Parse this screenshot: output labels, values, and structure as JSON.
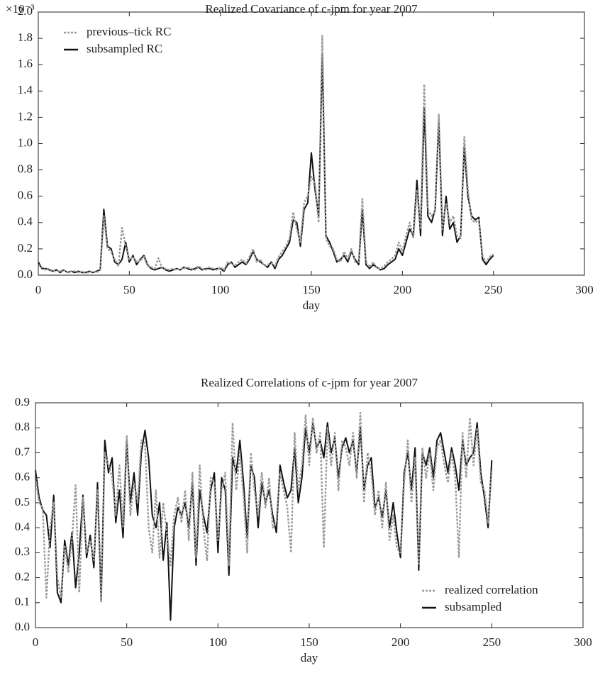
{
  "chart_data": [
    {
      "type": "line",
      "title": "Realized Covariance of c-jpm for year 2007",
      "xlabel": "day",
      "y_offset_label": "×10⁻³",
      "xlim": [
        0,
        300
      ],
      "xticks": [
        0,
        50,
        100,
        150,
        200,
        250,
        300
      ],
      "ylim": [
        0,
        2
      ],
      "yticks": [
        {
          "value": 0,
          "label": "0.0"
        },
        0.2,
        0.4,
        0.6,
        0.8,
        {
          "value": 1,
          "label": "1.0"
        },
        1.2,
        1.4,
        1.6,
        1.8,
        {
          "value": 2,
          "label": "2.0"
        }
      ],
      "legend": "upper left",
      "x": [
        0,
        2,
        4,
        6,
        8,
        10,
        12,
        14,
        16,
        18,
        20,
        22,
        24,
        26,
        28,
        30,
        32,
        34,
        36,
        38,
        40,
        42,
        44,
        46,
        48,
        50,
        52,
        54,
        56,
        58,
        60,
        62,
        64,
        66,
        68,
        70,
        72,
        74,
        76,
        78,
        80,
        82,
        84,
        86,
        88,
        90,
        92,
        94,
        96,
        98,
        100,
        102,
        104,
        106,
        108,
        110,
        112,
        114,
        116,
        118,
        120,
        122,
        124,
        126,
        128,
        130,
        132,
        134,
        136,
        138,
        140,
        142,
        144,
        146,
        148,
        150,
        152,
        154,
        156,
        158,
        160,
        162,
        164,
        166,
        168,
        170,
        172,
        174,
        176,
        178,
        180,
        182,
        184,
        186,
        188,
        190,
        192,
        194,
        196,
        198,
        200,
        202,
        204,
        206,
        208,
        210,
        212,
        214,
        216,
        218,
        220,
        222,
        224,
        226,
        228,
        230,
        232,
        234,
        236,
        238,
        240,
        242,
        244,
        246,
        248,
        250
      ],
      "series": [
        {
          "name": "previous–tick RC",
          "color": "#999999",
          "linestyle": "dashed",
          "values": [
            0.08,
            0.06,
            0.04,
            0.05,
            0.03,
            0.03,
            0.03,
            0.04,
            0.02,
            0.03,
            0.03,
            0.02,
            0.03,
            0.02,
            0.02,
            0.03,
            0.02,
            0.04,
            0.45,
            0.2,
            0.18,
            0.12,
            0.07,
            0.36,
            0.22,
            0.12,
            0.14,
            0.1,
            0.11,
            0.14,
            0.07,
            0.06,
            0.05,
            0.13,
            0.05,
            0.05,
            0.04,
            0.05,
            0.04,
            0.05,
            0.05,
            0.06,
            0.05,
            0.04,
            0.07,
            0.05,
            0.04,
            0.06,
            0.05,
            0.04,
            0.06,
            0.04,
            0.1,
            0.09,
            0.07,
            0.1,
            0.12,
            0.09,
            0.14,
            0.2,
            0.1,
            0.12,
            0.07,
            0.08,
            0.09,
            0.07,
            0.14,
            0.18,
            0.22,
            0.28,
            0.48,
            0.35,
            0.25,
            0.55,
            0.6,
            0.75,
            0.7,
            0.4,
            1.82,
            0.28,
            0.22,
            0.2,
            0.12,
            0.1,
            0.18,
            0.12,
            0.2,
            0.1,
            0.1,
            0.58,
            0.1,
            0.06,
            0.1,
            0.05,
            0.05,
            0.07,
            0.1,
            0.12,
            0.15,
            0.25,
            0.18,
            0.3,
            0.4,
            0.28,
            0.65,
            0.35,
            1.45,
            0.5,
            0.45,
            0.48,
            1.22,
            0.35,
            0.55,
            0.4,
            0.45,
            0.3,
            0.28,
            1.05,
            0.65,
            0.42,
            0.4,
            0.42,
            0.15,
            0.1,
            0.14,
            0.16
          ]
        },
        {
          "name": "subsampled RC",
          "color": "#111111",
          "linestyle": "solid",
          "values": [
            0.1,
            0.05,
            0.05,
            0.04,
            0.03,
            0.04,
            0.02,
            0.04,
            0.02,
            0.03,
            0.02,
            0.03,
            0.02,
            0.02,
            0.03,
            0.02,
            0.03,
            0.04,
            0.5,
            0.22,
            0.2,
            0.1,
            0.08,
            0.12,
            0.25,
            0.1,
            0.15,
            0.08,
            0.12,
            0.15,
            0.08,
            0.05,
            0.04,
            0.05,
            0.06,
            0.04,
            0.03,
            0.04,
            0.05,
            0.04,
            0.06,
            0.05,
            0.04,
            0.05,
            0.06,
            0.04,
            0.05,
            0.05,
            0.04,
            0.05,
            0.05,
            0.03,
            0.08,
            0.1,
            0.06,
            0.08,
            0.1,
            0.08,
            0.12,
            0.18,
            0.12,
            0.1,
            0.08,
            0.06,
            0.1,
            0.05,
            0.12,
            0.15,
            0.2,
            0.25,
            0.42,
            0.4,
            0.22,
            0.5,
            0.55,
            0.93,
            0.65,
            0.45,
            1.68,
            0.3,
            0.25,
            0.18,
            0.1,
            0.12,
            0.15,
            0.1,
            0.18,
            0.12,
            0.08,
            0.5,
            0.08,
            0.05,
            0.08,
            0.06,
            0.04,
            0.05,
            0.08,
            0.1,
            0.12,
            0.2,
            0.15,
            0.25,
            0.35,
            0.3,
            0.72,
            0.3,
            1.27,
            0.45,
            0.4,
            0.5,
            1.18,
            0.3,
            0.6,
            0.35,
            0.4,
            0.25,
            0.3,
            0.98,
            0.6,
            0.45,
            0.42,
            0.44,
            0.12,
            0.08,
            0.12,
            0.15
          ]
        }
      ]
    },
    {
      "type": "line",
      "title": "Realized Correlations of c-jpm for year 2007",
      "xlabel": "day",
      "xlim": [
        0,
        300
      ],
      "xticks": [
        0,
        50,
        100,
        150,
        200,
        250,
        300
      ],
      "ylim": [
        0,
        0.9
      ],
      "yticks": [
        {
          "value": 0,
          "label": "0.0"
        },
        0.1,
        0.2,
        0.3,
        0.4,
        0.5,
        0.6,
        0.7,
        0.8,
        0.9
      ],
      "legend": "lower right",
      "x": [
        0,
        2,
        4,
        6,
        8,
        10,
        12,
        14,
        16,
        18,
        20,
        22,
        24,
        26,
        28,
        30,
        32,
        34,
        36,
        38,
        40,
        42,
        44,
        46,
        48,
        50,
        52,
        54,
        56,
        58,
        60,
        62,
        64,
        66,
        68,
        70,
        72,
        74,
        76,
        78,
        80,
        82,
        84,
        86,
        88,
        90,
        92,
        94,
        96,
        98,
        100,
        102,
        104,
        106,
        108,
        110,
        112,
        114,
        116,
        118,
        120,
        122,
        124,
        126,
        128,
        130,
        132,
        134,
        136,
        138,
        140,
        142,
        144,
        146,
        148,
        150,
        152,
        154,
        156,
        158,
        160,
        162,
        164,
        166,
        168,
        170,
        172,
        174,
        176,
        178,
        180,
        182,
        184,
        186,
        188,
        190,
        192,
        194,
        196,
        198,
        200,
        202,
        204,
        206,
        208,
        210,
        212,
        214,
        216,
        218,
        220,
        222,
        224,
        226,
        228,
        230,
        232,
        234,
        236,
        238,
        240,
        242,
        244,
        246,
        248,
        250
      ],
      "series": [
        {
          "name": "realized correlation",
          "color": "#999999",
          "linestyle": "dashed",
          "values": [
            0.6,
            0.5,
            0.48,
            0.12,
            0.4,
            0.5,
            0.2,
            0.12,
            0.33,
            0.22,
            0.35,
            0.57,
            0.14,
            0.52,
            0.3,
            0.35,
            0.27,
            0.55,
            0.1,
            0.7,
            0.65,
            0.6,
            0.45,
            0.65,
            0.4,
            0.77,
            0.45,
            0.58,
            0.5,
            0.75,
            0.74,
            0.4,
            0.3,
            0.55,
            0.28,
            0.5,
            0.38,
            0.25,
            0.45,
            0.52,
            0.42,
            0.55,
            0.35,
            0.62,
            0.28,
            0.65,
            0.4,
            0.27,
            0.6,
            0.58,
            0.35,
            0.55,
            0.62,
            0.25,
            0.82,
            0.55,
            0.7,
            0.52,
            0.3,
            0.7,
            0.55,
            0.45,
            0.62,
            0.48,
            0.6,
            0.4,
            0.42,
            0.62,
            0.55,
            0.48,
            0.3,
            0.78,
            0.55,
            0.65,
            0.85,
            0.65,
            0.84,
            0.7,
            0.78,
            0.32,
            0.8,
            0.65,
            0.78,
            0.55,
            0.75,
            0.72,
            0.65,
            0.78,
            0.6,
            0.86,
            0.5,
            0.7,
            0.62,
            0.45,
            0.55,
            0.4,
            0.58,
            0.35,
            0.45,
            0.32,
            0.3,
            0.58,
            0.75,
            0.5,
            0.68,
            0.25,
            0.72,
            0.6,
            0.7,
            0.55,
            0.72,
            0.75,
            0.65,
            0.58,
            0.7,
            0.6,
            0.28,
            0.78,
            0.6,
            0.84,
            0.65,
            0.8,
            0.58,
            0.55,
            0.42,
            0.63
          ]
        },
        {
          "name": "subsampled",
          "color": "#111111",
          "linestyle": "solid",
          "values": [
            0.63,
            0.52,
            0.47,
            0.45,
            0.32,
            0.53,
            0.14,
            0.1,
            0.35,
            0.25,
            0.38,
            0.16,
            0.3,
            0.53,
            0.28,
            0.37,
            0.24,
            0.58,
            0.11,
            0.75,
            0.62,
            0.68,
            0.42,
            0.55,
            0.36,
            0.75,
            0.5,
            0.62,
            0.45,
            0.7,
            0.79,
            0.68,
            0.45,
            0.4,
            0.5,
            0.27,
            0.42,
            0.03,
            0.4,
            0.48,
            0.45,
            0.5,
            0.4,
            0.58,
            0.25,
            0.55,
            0.45,
            0.38,
            0.55,
            0.62,
            0.3,
            0.6,
            0.55,
            0.21,
            0.68,
            0.62,
            0.75,
            0.58,
            0.36,
            0.65,
            0.6,
            0.4,
            0.58,
            0.5,
            0.55,
            0.45,
            0.38,
            0.65,
            0.58,
            0.52,
            0.55,
            0.72,
            0.5,
            0.6,
            0.8,
            0.7,
            0.82,
            0.72,
            0.75,
            0.68,
            0.82,
            0.7,
            0.76,
            0.6,
            0.72,
            0.76,
            0.7,
            0.75,
            0.62,
            0.8,
            0.55,
            0.65,
            0.68,
            0.48,
            0.52,
            0.44,
            0.55,
            0.4,
            0.5,
            0.38,
            0.28,
            0.62,
            0.7,
            0.55,
            0.72,
            0.23,
            0.7,
            0.65,
            0.72,
            0.6,
            0.75,
            0.78,
            0.7,
            0.62,
            0.72,
            0.65,
            0.55,
            0.75,
            0.65,
            0.68,
            0.7,
            0.82,
            0.62,
            0.52,
            0.4,
            0.67
          ]
        }
      ]
    }
  ]
}
